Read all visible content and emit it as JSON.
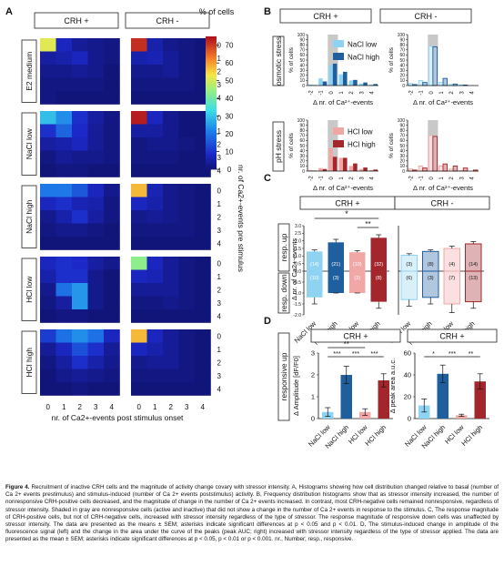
{
  "panel_letters": [
    "A",
    "B",
    "C",
    "D"
  ],
  "panelA": {
    "col_titles": [
      "CRH +",
      "CRH -"
    ],
    "row_titles": [
      "E2 medium",
      "NaCl low",
      "NaCl high",
      "HCl low",
      "HCl high"
    ],
    "y_ticks": [
      "0",
      "1",
      "2",
      "3",
      "4"
    ],
    "x_ticks": [
      "0",
      "1",
      "2",
      "3",
      "4"
    ],
    "xlabel": "nr. of Ca2+-events post stimulus onset",
    "ylabel": "nr. of Ca2+-events pre stimulus",
    "colorbar_label": "% of cells",
    "colorbar_ticks": [
      "70",
      "60",
      "50",
      "40",
      "30",
      "20",
      "10",
      "0"
    ]
  },
  "panelB": {
    "col_titles": [
      "CRH +",
      "CRH -"
    ],
    "row_titles": [
      "osmotic stress",
      "pH stress"
    ],
    "ylabel": "% of cells",
    "y_ticks": [
      "0",
      "10",
      "20",
      "30",
      "40",
      "50",
      "60",
      "70",
      "80",
      "90",
      "100"
    ],
    "x_ticks": [
      "-2",
      "-1",
      "0",
      "1",
      "2",
      "3",
      "4"
    ],
    "xlabel": "Δ nr. of Ca²⁺-events",
    "legend_top": [
      "NaCl low",
      "NaCl high"
    ],
    "legend_bottom": [
      "HCl low",
      "HCl high"
    ]
  },
  "panelC": {
    "col_titles": [
      "CRH +",
      "CRH -"
    ],
    "row_titles": [
      "resp. up",
      "resp. down"
    ],
    "ylabel": "Δ nr. of Ca2+-events",
    "y_ticks_up": [
      "3.0",
      "2.5",
      "2.0",
      "1.5",
      "1.0",
      "0.5",
      "0.0"
    ],
    "y_ticks_down": [
      "-0.5",
      "-1.0",
      "-1.5",
      "-2.0"
    ],
    "categories": [
      "NaCl low",
      "NaCl high",
      "HCl low",
      "HCl high"
    ],
    "sig": [
      "*",
      "**"
    ]
  },
  "panelD": {
    "col_titles": [
      "CRH +",
      "CRH +"
    ],
    "row_title": "responsive up",
    "ylabel_left": "Δ Amplitude [dF/F0]",
    "ylabel_right": "Δ peak area a.u.c.",
    "y_ticks_left": [
      "0",
      "1",
      "2",
      "3"
    ],
    "y_ticks_right": [
      "0",
      "20",
      "40",
      "60"
    ],
    "categories": [
      "NaCl low",
      "NaCl high",
      "HCl low",
      "HCl high"
    ],
    "sig_left": [
      "**",
      "***",
      "***",
      "***",
      "***"
    ],
    "sig_right": [
      "*",
      "***",
      "**"
    ]
  },
  "colors": {
    "nacl_low": "#8fd3f2",
    "nacl_high": "#1f5f9e",
    "hcl_low": "#f2a7a7",
    "hcl_high": "#a3262c",
    "nonresponsive_shade": "#c8c8c8"
  },
  "chart_data": [
    {
      "type": "heatmap",
      "panel": "A",
      "xlabel": "nr. of Ca2+-events post stimulus onset",
      "ylabel": "nr. of Ca2+-events pre stimulus",
      "colorbar_range": [
        0,
        75
      ],
      "x": [
        0,
        1,
        2,
        3,
        4
      ],
      "y": [
        0,
        1,
        2,
        3,
        4
      ],
      "CRH+": {
        "E2 medium": [
          [
            52,
            8,
            4,
            3,
            2
          ],
          [
            5,
            6,
            8,
            3,
            2
          ],
          [
            3,
            3,
            4,
            3,
            1
          ],
          [
            2,
            2,
            2,
            2,
            1
          ],
          [
            2,
            1,
            1,
            1,
            1
          ]
        ],
        "NaCl low": [
          [
            30,
            24,
            10,
            5,
            2
          ],
          [
            10,
            18,
            9,
            4,
            2
          ],
          [
            5,
            6,
            8,
            4,
            2
          ],
          [
            2,
            4,
            3,
            3,
            2
          ],
          [
            1,
            2,
            2,
            1,
            1
          ]
        ],
        "NaCl high": [
          [
            21,
            21,
            16,
            8,
            3
          ],
          [
            8,
            10,
            7,
            6,
            2
          ],
          [
            3,
            6,
            10,
            5,
            2
          ],
          [
            2,
            3,
            3,
            2,
            1
          ],
          [
            1,
            1,
            1,
            1,
            1
          ]
        ],
        "HCl low": [
          [
            8,
            10,
            9,
            5,
            3
          ],
          [
            6,
            10,
            10,
            3,
            1
          ],
          [
            3,
            20,
            25,
            3,
            1
          ],
          [
            2,
            5,
            25,
            3,
            1
          ],
          [
            1,
            2,
            2,
            1,
            1
          ]
        ],
        "HCl high": [
          [
            12,
            20,
            24,
            20,
            8
          ],
          [
            4,
            8,
            15,
            10,
            4
          ],
          [
            2,
            5,
            10,
            6,
            3
          ],
          [
            1,
            3,
            4,
            3,
            2
          ],
          [
            1,
            1,
            2,
            1,
            1
          ]
        ]
      },
      "CRH-": {
        "E2 medium": [
          [
            72,
            6,
            3,
            2,
            1
          ],
          [
            6,
            7,
            4,
            2,
            1
          ],
          [
            3,
            3,
            4,
            2,
            1
          ],
          [
            2,
            2,
            2,
            2,
            1
          ],
          [
            1,
            1,
            1,
            1,
            1
          ]
        ],
        "NaCl low": [
          [
            74,
            8,
            3,
            1,
            1
          ],
          [
            5,
            5,
            3,
            1,
            1
          ],
          [
            2,
            3,
            3,
            2,
            1
          ],
          [
            2,
            2,
            2,
            1,
            1
          ],
          [
            1,
            1,
            1,
            1,
            1
          ]
        ],
        "NaCl high": [
          [
            58,
            7,
            3,
            2,
            1
          ],
          [
            8,
            6,
            3,
            2,
            1
          ],
          [
            3,
            4,
            3,
            2,
            1
          ],
          [
            2,
            2,
            2,
            2,
            1
          ],
          [
            1,
            1,
            1,
            1,
            1
          ]
        ],
        "HCl low": [
          [
            44,
            8,
            4,
            2,
            1
          ],
          [
            8,
            7,
            4,
            2,
            1
          ],
          [
            4,
            4,
            4,
            2,
            1
          ],
          [
            2,
            2,
            3,
            2,
            1
          ],
          [
            1,
            1,
            1,
            1,
            1
          ]
        ],
        "HCl high": [
          [
            58,
            8,
            4,
            2,
            1
          ],
          [
            8,
            6,
            4,
            2,
            1
          ],
          [
            3,
            4,
            4,
            2,
            1
          ],
          [
            2,
            2,
            2,
            2,
            1
          ],
          [
            1,
            1,
            1,
            1,
            1
          ]
        ]
      }
    },
    {
      "type": "bar",
      "panel": "B",
      "xlabel": "Δ nr. of Ca²⁺-events",
      "ylabel": "% of cells",
      "ylim": [
        0,
        100
      ],
      "x": [
        -2,
        -1,
        0,
        1,
        2,
        3,
        4
      ],
      "shaded_category": 0,
      "CRH+": {
        "osmotic": [
          {
            "name": "NaCl low",
            "values": [
              2,
              14,
              40,
              22,
              10,
              4,
              2
            ]
          },
          {
            "name": "NaCl high",
            "values": [
              1,
              8,
              43,
              27,
              11,
              6,
              3
            ]
          }
        ],
        "pH": [
          {
            "name": "HCl low",
            "values": [
              2,
              6,
              45,
              26,
              10,
              4,
              2
            ]
          },
          {
            "name": "HCl high",
            "values": [
              1,
              4,
              28,
              26,
              15,
              7,
              3
            ]
          }
        ]
      },
      "CRH-": {
        "osmotic": [
          {
            "name": "NaCl low",
            "values": [
              4,
              10,
              77,
              6,
              2,
              1,
              0
            ]
          },
          {
            "name": "NaCl high",
            "values": [
              2,
              6,
              76,
              14,
              3,
              1,
              0
            ]
          }
        ],
        "pH": [
          {
            "name": "HCl low",
            "values": [
              4,
              10,
              70,
              10,
              4,
              1,
              0
            ]
          },
          {
            "name": "HCl high",
            "values": [
              2,
              6,
              68,
              14,
              10,
              6,
              2
            ]
          }
        ]
      }
    },
    {
      "type": "bar",
      "panel": "C",
      "ylabel": "Δ nr. of Ca2+-events",
      "categories": [
        "NaCl low",
        "NaCl high",
        "HCl low",
        "HCl high"
      ],
      "CRH+": {
        "resp_up": {
          "values": [
            1.3,
            1.9,
            1.25,
            2.2
          ],
          "errors": [
            0.1,
            0.2,
            0.1,
            0.2
          ],
          "n": [
            14,
            21,
            10,
            32
          ]
        },
        "resp_down": {
          "values": [
            -1.2,
            -1.0,
            -1.0,
            -1.4
          ],
          "errors": [
            0.3,
            0.0,
            0.0,
            0.3
          ],
          "n": [
            10,
            3,
            2,
            8
          ]
        }
      },
      "CRH-": {
        "resp_up": {
          "values": [
            1.05,
            1.3,
            1.5,
            1.8
          ],
          "errors": [
            0.1,
            0.1,
            0.15,
            0.15
          ],
          "n": [
            3,
            8,
            4,
            14
          ]
        },
        "resp_down": {
          "values": [
            -1.3,
            -1.2,
            -1.5,
            -1.4
          ],
          "errors": [
            0.3,
            0.3,
            0.4,
            0.3
          ],
          "n": [
            6,
            3,
            7,
            13
          ]
        }
      }
    },
    {
      "type": "bar",
      "panel": "D",
      "categories": [
        "NaCl low",
        "NaCl high",
        "HCl low",
        "HCl high"
      ],
      "amplitude": {
        "ylabel": "Δ Amplitude [dF/F0]",
        "ylim": [
          0,
          3
        ],
        "values": [
          0.3,
          2.0,
          0.3,
          1.75
        ],
        "errors": [
          0.2,
          0.4,
          0.15,
          0.3
        ]
      },
      "peak_area": {
        "ylabel": "Δ peak area a.u.c.",
        "ylim": [
          0,
          60
        ],
        "values": [
          12,
          41,
          3,
          34
        ],
        "errors": [
          6,
          8,
          1,
          7
        ]
      }
    }
  ],
  "caption": {
    "label": "Figure 4.",
    "text": "Recruitment of inactive CRH cells and the magnitude of activity change covary with stressor intensity. A, Histograms showing how cell distribution changed relative to basal (number of Ca 2+ events prestimulus) and stimulus-induced (number of Ca 2+ events poststimulus) activity. B, Frequency distribution histograms show that as stressor intensity increased, the number of nonresponsive CRH-positive cells decreased, and the magnitude of change in the number of Ca 2+ events increased. In contrast, most CRH-negative cells remained nonresponsive, regardless of stressor intensity. Shaded in gray are nonresponsive cells (active and inactive) that did not show a change in the number of Ca 2+ events in response to the stimulus. C, The response magnitude of CRH-positive cells, but not of CRH-negative cells, increased with stressor intensity regardless of the type of stressor. The response magnitude of responsive down cells was unaffected by stressor intensity. The data are presented as the means ± SEM; asterisks indicate significant differences at p < 0.05 and p < 0.01. D, The stimulus-induced change in amplitude of the fluorescence signal (left) and the change in the area under the curve of the peaks (peak AUC; right) increased with stressor intensity regardless of the type of stressor applied. The data are presented as the mean ± SEM; asterisks indicate significant differences at p < 0.05, p < 0.01 or p < 0.001. nr., Number; resp., responsive."
  }
}
